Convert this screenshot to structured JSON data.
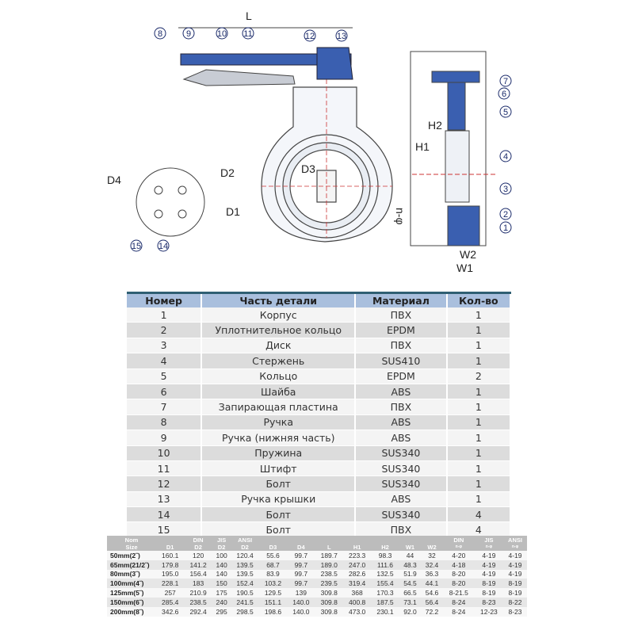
{
  "drawing": {
    "labels": {
      "L": "L",
      "D1": "D1",
      "D2": "D2",
      "D3": "D3",
      "D4": "D4",
      "H1": "H1",
      "H2": "H2",
      "W1": "W1",
      "W2": "W2",
      "n": "n-φ"
    },
    "callouts": [
      "1",
      "2",
      "3",
      "4",
      "5",
      "6",
      "7",
      "8",
      "9",
      "10",
      "11",
      "12",
      "13",
      "14",
      "15"
    ],
    "accent_color": "#3a5fb0"
  },
  "parts_table": {
    "headers": [
      "Номер",
      "Часть детали",
      "Материал",
      "Кол-во"
    ],
    "rows": [
      [
        "1",
        "Корпус",
        "ПВХ",
        "1"
      ],
      [
        "2",
        "Уплотнительное кольцо",
        "EPDM",
        "1"
      ],
      [
        "3",
        "Диск",
        "ПВХ",
        "1"
      ],
      [
        "4",
        "Стержень",
        "SUS410",
        "1"
      ],
      [
        "5",
        "Кольцо",
        "EPDM",
        "2"
      ],
      [
        "6",
        "Шайба",
        "ABS",
        "1"
      ],
      [
        "7",
        "Запирающая пластина",
        "ПВХ",
        "1"
      ],
      [
        "8",
        "Ручка",
        "ABS",
        "1"
      ],
      [
        "9",
        "Ручка (нижняя часть)",
        "ABS",
        "1"
      ],
      [
        "10",
        "Пружина",
        "SUS340",
        "1"
      ],
      [
        "11",
        "Штифт",
        "SUS340",
        "1"
      ],
      [
        "12",
        "Болт",
        "SUS340",
        "1"
      ],
      [
        "13",
        "Ручка крышки",
        "ABS",
        "1"
      ],
      [
        "14",
        "Болт",
        "SUS340",
        "4"
      ],
      [
        "15",
        "Болт",
        "ПВХ",
        "4"
      ]
    ]
  },
  "dims_table": {
    "headers": [
      {
        "top": "Nom",
        "bottom": "Size"
      },
      {
        "top": "",
        "bottom": "D1"
      },
      {
        "top": "DIN",
        "bottom": "D2"
      },
      {
        "top": "JIS",
        "bottom": "D2"
      },
      {
        "top": "ANSI",
        "bottom": "D2"
      },
      {
        "top": "",
        "bottom": "D3"
      },
      {
        "top": "",
        "bottom": "D4"
      },
      {
        "top": "",
        "bottom": "L"
      },
      {
        "top": "",
        "bottom": "H1"
      },
      {
        "top": "",
        "bottom": "H2"
      },
      {
        "top": "",
        "bottom": "W1"
      },
      {
        "top": "",
        "bottom": "W2"
      },
      {
        "top": "DIN",
        "bottom": "n-φ"
      },
      {
        "top": "JIS",
        "bottom": "n-φ"
      },
      {
        "top": "ANSI",
        "bottom": "n-φ"
      }
    ],
    "rows": [
      [
        "50mm(2˝)",
        "160.1",
        "120",
        "100",
        "120.4",
        "55.6",
        "99.7",
        "189.7",
        "223.3",
        "98.3",
        "44",
        "32",
        "4-20",
        "4-19",
        "4-19"
      ],
      [
        "65mm(21/2˝)",
        "179.8",
        "141.2",
        "140",
        "139.5",
        "68.7",
        "99.7",
        "189.0",
        "247.0",
        "111.6",
        "48.3",
        "32.4",
        "4-18",
        "4-19",
        "4-19"
      ],
      [
        "80mm(3˝)",
        "195.0",
        "156.4",
        "140",
        "139.5",
        "83.9",
        "99.7",
        "238.5",
        "282.6",
        "132.5",
        "51.9",
        "36.3",
        "8-20",
        "4-19",
        "4-19"
      ],
      [
        "100mm(4˝)",
        "228.1",
        "183",
        "150",
        "152.4",
        "103.2",
        "99.7",
        "239.5",
        "319.4",
        "155.4",
        "54.5",
        "44.1",
        "8-20",
        "8-19",
        "8-19"
      ],
      [
        "125mm(5˝)",
        "257",
        "210.9",
        "175",
        "190.5",
        "129.5",
        "139",
        "309.8",
        "368",
        "170.3",
        "66.5",
        "54.6",
        "8-21.5",
        "8-19",
        "8-19"
      ],
      [
        "150mm(6˝)",
        "285.4",
        "238.5",
        "240",
        "241.5",
        "151.1",
        "140.0",
        "309.8",
        "400.8",
        "187.5",
        "73.1",
        "56.4",
        "8-24",
        "8-23",
        "8-22"
      ],
      [
        "200mm(8˝)",
        "342.6",
        "292.4",
        "295",
        "298.5",
        "198.6",
        "140.0",
        "309.8",
        "473.0",
        "230.1",
        "92.0",
        "72.2",
        "8-24",
        "12-23",
        "8-23"
      ]
    ]
  }
}
